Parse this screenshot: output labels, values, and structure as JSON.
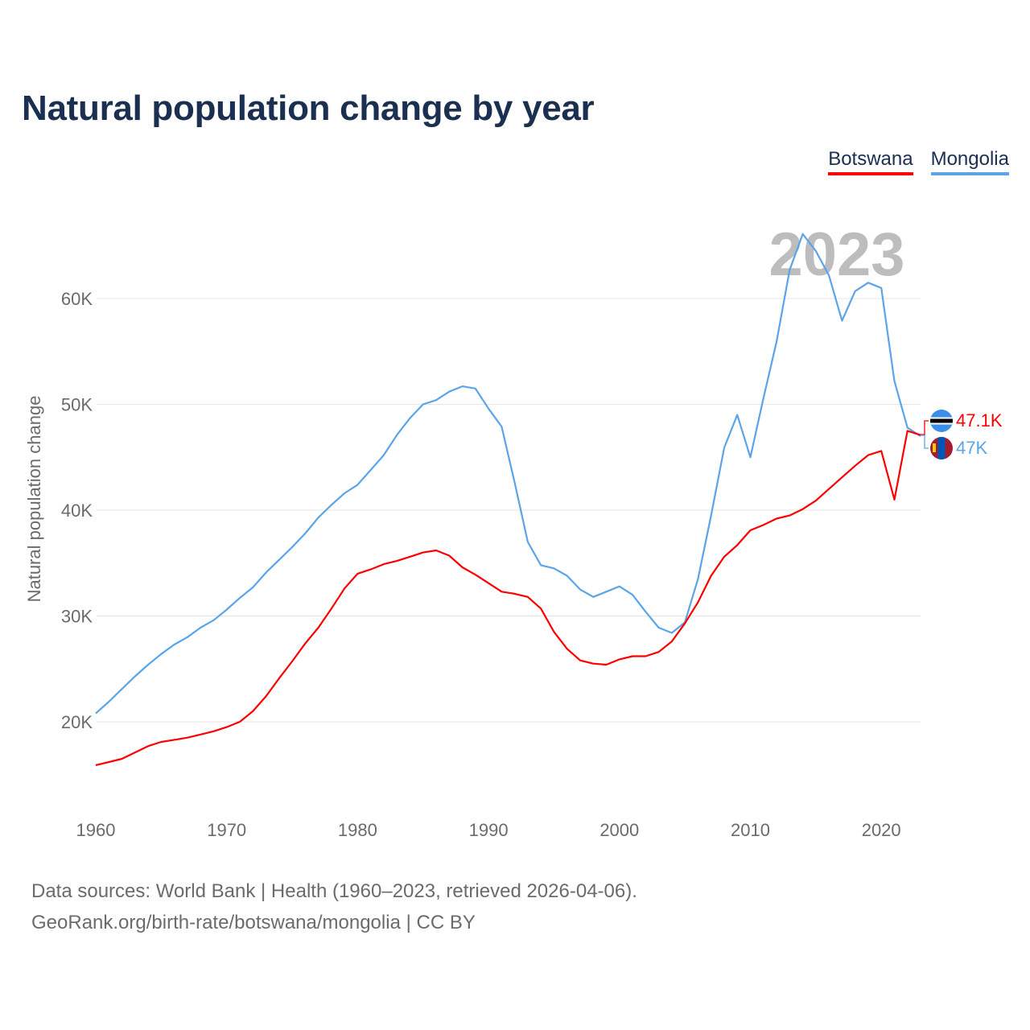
{
  "title": "Natural population change by year",
  "legend": [
    {
      "label": "Botswana",
      "color": "#ff0000"
    },
    {
      "label": "Mongolia",
      "color": "#5ba4e8"
    }
  ],
  "year_overlay": "2023",
  "end_labels": {
    "botswana": "47.1K",
    "mongolia": "47K"
  },
  "source_line1": "Data sources: World Bank | Health (1960–2023, retrieved 2026-04-06).",
  "source_line2": "GeoRank.org/birth-rate/botswana/mongolia | CC BY",
  "chart_data": {
    "type": "line",
    "title": "Natural population change by year",
    "xlabel": "",
    "ylabel": "Natural population change",
    "xlim": [
      1960,
      2023
    ],
    "ylim": [
      14000,
      67000
    ],
    "x_ticks": [
      1960,
      1970,
      1980,
      1990,
      2000,
      2010,
      2020
    ],
    "x_tick_labels": [
      "1960",
      "1970",
      "1980",
      "1990",
      "2000",
      "2010",
      "2020"
    ],
    "y_ticks": [
      20000,
      30000,
      40000,
      50000,
      60000
    ],
    "y_tick_labels": [
      "20K",
      "30K",
      "40K",
      "50K",
      "60K"
    ],
    "grid": "horizontal",
    "legend_position": "top-right",
    "x": [
      1960,
      1961,
      1962,
      1963,
      1964,
      1965,
      1966,
      1967,
      1968,
      1969,
      1970,
      1971,
      1972,
      1973,
      1974,
      1975,
      1976,
      1977,
      1978,
      1979,
      1980,
      1981,
      1982,
      1983,
      1984,
      1985,
      1986,
      1987,
      1988,
      1989,
      1990,
      1991,
      1992,
      1993,
      1994,
      1995,
      1996,
      1997,
      1998,
      1999,
      2000,
      2001,
      2002,
      2003,
      2004,
      2005,
      2006,
      2007,
      2008,
      2009,
      2010,
      2011,
      2012,
      2013,
      2014,
      2015,
      2016,
      2017,
      2018,
      2019,
      2020,
      2021,
      2022,
      2023
    ],
    "series": [
      {
        "name": "Botswana",
        "color": "#ff0000",
        "values": [
          15900,
          16200,
          16500,
          17100,
          17700,
          18100,
          18300,
          18500,
          18800,
          19100,
          19500,
          20000,
          21000,
          22400,
          24100,
          25700,
          27400,
          28900,
          30700,
          32600,
          34000,
          34400,
          34900,
          35200,
          35600,
          36000,
          36200,
          35700,
          34600,
          33900,
          33100,
          32300,
          32100,
          31800,
          30700,
          28500,
          26900,
          25800,
          25500,
          25400,
          25900,
          26200,
          26200,
          26600,
          27600,
          29300,
          31300,
          33800,
          35600,
          36700,
          38100,
          38600,
          39200,
          39500,
          40100,
          40900,
          42000,
          43100,
          44200,
          45200,
          45600,
          41000,
          47500,
          47100
        ]
      },
      {
        "name": "Mongolia",
        "color": "#5ba4e8",
        "values": [
          20800,
          21900,
          23100,
          24300,
          25400,
          26400,
          27300,
          28000,
          28900,
          29600,
          30600,
          31700,
          32700,
          34100,
          35300,
          36500,
          37800,
          39300,
          40500,
          41600,
          42400,
          43800,
          45200,
          47100,
          48700,
          50000,
          50400,
          51200,
          51700,
          51500,
          49600,
          47900,
          42600,
          37000,
          34800,
          34500,
          33800,
          32500,
          31800,
          32300,
          32800,
          32000,
          30400,
          28900,
          28400,
          29400,
          33500,
          39500,
          45900,
          49000,
          45000,
          50600,
          55900,
          62700,
          66100,
          64500,
          62200,
          57900,
          60700,
          61500,
          61000,
          52200,
          47800,
          47000
        ]
      }
    ]
  }
}
